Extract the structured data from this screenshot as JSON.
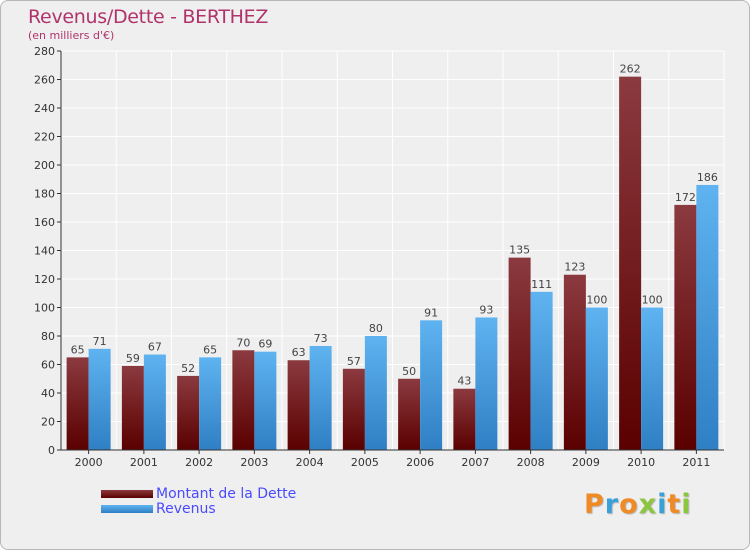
{
  "header": {
    "title": "Revenus/Dette - BERTHEZ",
    "subtitle": "(en milliers d'€)"
  },
  "colors": {
    "dette_light": "#8b3a3f",
    "dette_dark": "#5a0000",
    "revenus_light": "#5fb3f0",
    "revenus_dark": "#2f7fc4",
    "title": "#b0336b",
    "legend_text": "#4a4aff"
  },
  "legend": {
    "items": [
      {
        "label": "Montant de la Dette"
      },
      {
        "label": "Revenus"
      }
    ]
  },
  "logo": {
    "letters": [
      "P",
      "r",
      "o",
      "x",
      "i",
      "t",
      "i"
    ],
    "colors": [
      "#f08a24",
      "#3aa0d8",
      "#f08a24",
      "#8cc63f",
      "#3aa0d8",
      "#f08a24",
      "#8cc63f"
    ]
  },
  "chart_data": {
    "type": "bar",
    "title": "Revenus/Dette - BERTHEZ",
    "ylabel": "(en milliers d'€)",
    "categories": [
      "2000",
      "2001",
      "2002",
      "2003",
      "2004",
      "2005",
      "2006",
      "2007",
      "2008",
      "2009",
      "2010",
      "2011"
    ],
    "series": [
      {
        "name": "Montant de la Dette",
        "values": [
          65,
          59,
          52,
          70,
          63,
          57,
          50,
          43,
          135,
          123,
          262,
          172
        ]
      },
      {
        "name": "Revenus",
        "values": [
          71,
          67,
          65,
          69,
          73,
          80,
          91,
          93,
          111,
          100,
          100,
          186
        ]
      }
    ],
    "ylim": [
      0,
      280
    ],
    "yticks": [
      0,
      20,
      40,
      60,
      80,
      100,
      120,
      140,
      160,
      180,
      200,
      220,
      240,
      260,
      280
    ],
    "grid": true,
    "legend_position": "bottom-left"
  }
}
